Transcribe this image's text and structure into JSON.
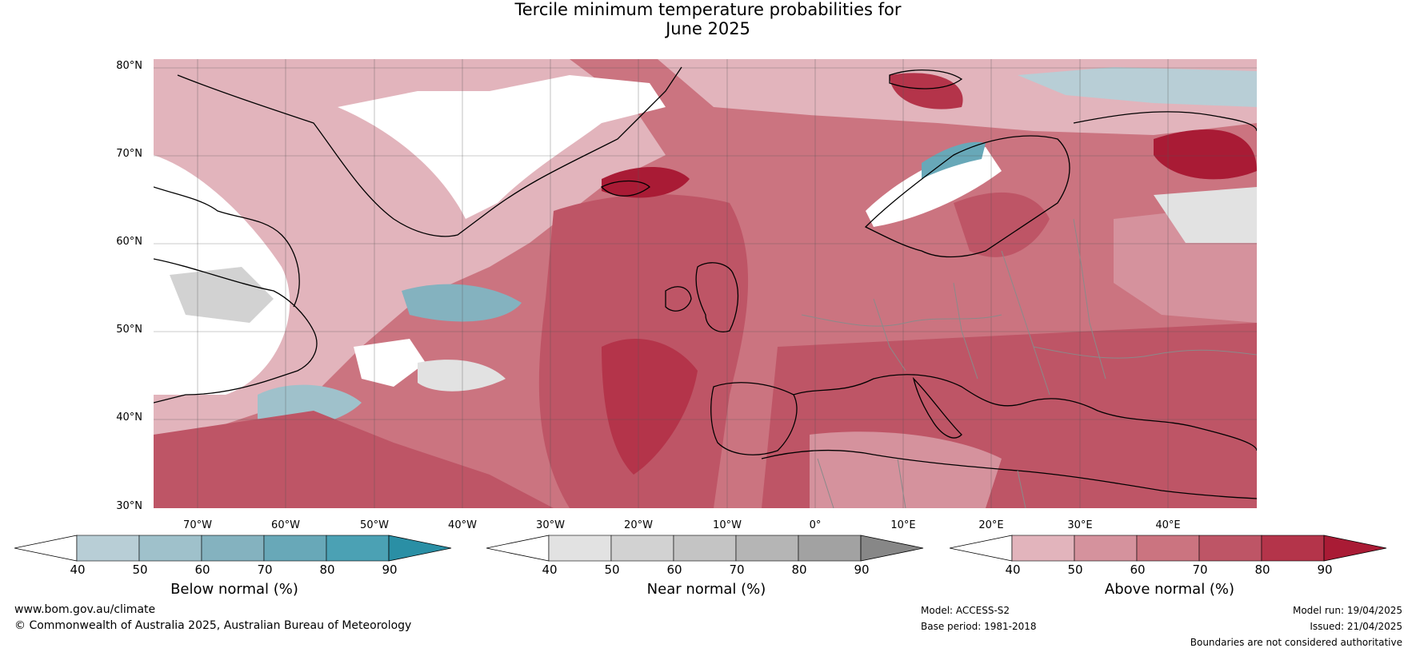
{
  "title_line1": "Tercile minimum temperature probabilities for",
  "title_line2": "June 2025",
  "latitude_labels": [
    "80°N",
    "70°N",
    "60°N",
    "50°N",
    "40°N",
    "30°N"
  ],
  "longitude_labels": [
    "70°W",
    "60°W",
    "50°W",
    "40°W",
    "30°W",
    "20°W",
    "10°W",
    "0°",
    "10°E",
    "20°E",
    "30°E",
    "40°E"
  ],
  "colorbars": [
    {
      "title": "Below normal (%)",
      "ticks": [
        "40",
        "50",
        "60",
        "70",
        "80",
        "90"
      ],
      "colors": [
        "#ffffff",
        "#b8ced6",
        "#9fc1cb",
        "#84b2bf",
        "#68a8b8",
        "#4ba1b4",
        "#2a8fa5"
      ]
    },
    {
      "title": "Near normal (%)",
      "ticks": [
        "40",
        "50",
        "60",
        "70",
        "80",
        "90"
      ],
      "colors": [
        "#ffffff",
        "#e2e2e2",
        "#d2d2d2",
        "#c4c4c4",
        "#b5b5b5",
        "#a2a2a2",
        "#878787"
      ]
    },
    {
      "title": "Above normal (%)",
      "ticks": [
        "40",
        "50",
        "60",
        "70",
        "80",
        "90"
      ],
      "colors": [
        "#ffffff",
        "#e2b4bc",
        "#d5929d",
        "#cb7480",
        "#be5566",
        "#b4344a",
        "#a91b35"
      ]
    }
  ],
  "footer": {
    "website": "www.bom.gov.au/climate",
    "copyright": "© Commonwealth of Australia 2025, Australian Bureau of Meteorology",
    "model": "Model: ACCESS-S2",
    "base_period": "Base period: 1981-2018",
    "model_run": "Model run: 19/04/2025",
    "issued": "Issued: 21/04/2025",
    "disclaimer": "Boundaries are not considered authoritative"
  },
  "map": {
    "extent": {
      "lon_min": -75,
      "lon_max": 50,
      "lat_min": 30,
      "lat_max": 81
    },
    "grid_lons": [
      -70,
      -60,
      -50,
      -40,
      -30,
      -20,
      -10,
      0,
      10,
      20,
      30,
      40
    ],
    "grid_lats": [
      30,
      40,
      50,
      60,
      70,
      80
    ]
  }
}
